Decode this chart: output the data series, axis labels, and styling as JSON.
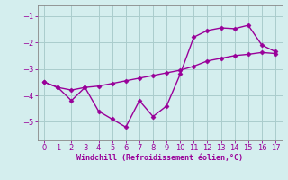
{
  "line1_x": [
    0,
    1,
    2,
    3,
    4,
    5,
    6,
    7,
    8,
    9,
    10,
    11,
    12,
    13,
    14,
    15,
    16,
    17
  ],
  "line1_y": [
    -3.5,
    -3.7,
    -4.2,
    -3.7,
    -4.6,
    -4.9,
    -5.2,
    -4.2,
    -4.8,
    -4.4,
    -3.2,
    -1.8,
    -1.55,
    -1.45,
    -1.48,
    -1.35,
    -2.1,
    -2.35
  ],
  "line2_x": [
    0,
    1,
    2,
    3,
    4,
    5,
    6,
    7,
    8,
    9,
    10,
    11,
    12,
    13,
    14,
    15,
    16,
    17
  ],
  "line2_y": [
    -3.5,
    -3.7,
    -3.8,
    -3.7,
    -3.65,
    -3.55,
    -3.45,
    -3.35,
    -3.25,
    -3.15,
    -3.05,
    -2.9,
    -2.7,
    -2.6,
    -2.5,
    -2.45,
    -2.38,
    -2.42
  ],
  "color": "#990099",
  "bg_color": "#d4eeee",
  "grid_color": "#aacccc",
  "xlabel": "Windchill (Refroidissement éolien,°C)",
  "xlabel_color": "#990099",
  "xlim": [
    -0.5,
    17.5
  ],
  "ylim": [
    -5.7,
    -0.6
  ],
  "yticks": [
    -5,
    -4,
    -3,
    -2,
    -1
  ],
  "xticks": [
    0,
    1,
    2,
    3,
    4,
    5,
    6,
    7,
    8,
    9,
    10,
    11,
    12,
    13,
    14,
    15,
    16,
    17
  ],
  "tick_color": "#990099",
  "marker": "D",
  "markersize": 2.5,
  "linewidth": 1.0
}
